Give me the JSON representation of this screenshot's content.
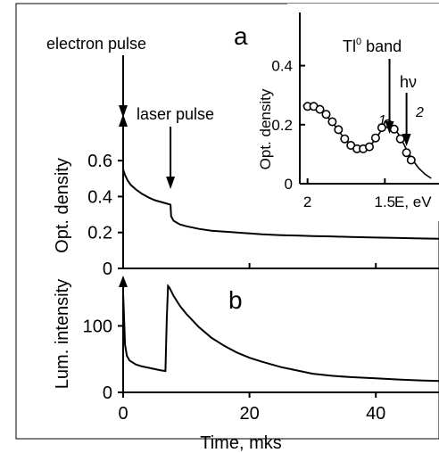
{
  "chart_data": [
    {
      "panel": "a",
      "type": "line",
      "xlabel": "",
      "ylabel": "Opt. density",
      "xlim": [
        0,
        50
      ],
      "ylim": [
        0,
        0.7
      ],
      "x_ticks": [
        {
          "value": 0,
          "label": "0"
        },
        {
          "value": 20,
          "label": "20"
        },
        {
          "value": 40,
          "label": "40"
        }
      ],
      "y_ticks": [
        {
          "value": 0,
          "label": "0"
        },
        {
          "value": 0.2,
          "label": "0.2"
        },
        {
          "value": 0.4,
          "label": "0.4"
        },
        {
          "value": 0.6,
          "label": "0.6"
        }
      ],
      "series": [
        {
          "x": [
            0,
            0.3,
            0.7,
            1.2,
            2,
            3,
            4,
            5,
            6,
            7,
            7.5,
            7.6,
            8,
            9,
            10,
            12,
            14,
            16,
            18,
            20,
            22,
            25,
            28,
            30,
            33,
            36,
            40,
            43,
            46,
            50
          ],
          "y": [
            0.55,
            0.52,
            0.49,
            0.465,
            0.44,
            0.415,
            0.395,
            0.38,
            0.37,
            0.36,
            0.355,
            0.29,
            0.265,
            0.245,
            0.235,
            0.22,
            0.21,
            0.205,
            0.2,
            0.195,
            0.19,
            0.185,
            0.182,
            0.18,
            0.178,
            0.175,
            0.172,
            0.17,
            0.168,
            0.165
          ]
        }
      ],
      "annotations": [
        {
          "text": "electron pulse",
          "x": 0
        },
        {
          "text": "laser pulse",
          "x": 7.5
        }
      ]
    },
    {
      "panel": "b",
      "type": "line",
      "xlabel": "Time, mks",
      "ylabel": "Lum. intensity",
      "xlim": [
        0,
        50
      ],
      "ylim": [
        0,
        165
      ],
      "x_ticks": [
        {
          "value": 0,
          "label": "0"
        },
        {
          "value": 20,
          "label": "20"
        },
        {
          "value": 40,
          "label": "40"
        }
      ],
      "y_ticks": [
        {
          "value": 0,
          "label": "0"
        },
        {
          "value": 100,
          "label": "100"
        }
      ],
      "series": [
        {
          "x": [
            0,
            0.15,
            0.3,
            0.6,
            1,
            2,
            3,
            4,
            5,
            6,
            6.7,
            6.9,
            7.1,
            7.3,
            8,
            9,
            10,
            12,
            14,
            16,
            18,
            20,
            22,
            25,
            28,
            30,
            33,
            36,
            40,
            44,
            47,
            50
          ],
          "y": [
            150,
            110,
            72,
            55,
            48,
            42,
            39,
            37,
            35,
            33,
            32,
            110,
            160,
            158,
            145,
            130,
            118,
            98,
            82,
            70,
            60,
            52,
            46,
            38,
            32,
            28,
            25,
            23,
            21,
            19,
            18,
            17
          ]
        }
      ]
    },
    {
      "panel": "inset",
      "type": "scatter",
      "xlabel": "E, eV",
      "ylabel": "Opt. density",
      "xlim": [
        2.05,
        1.15
      ],
      "ylim": [
        0,
        0.58
      ],
      "x_ticks": [
        {
          "value": 2,
          "label": "2"
        },
        {
          "value": 1.5,
          "label": "1.5"
        }
      ],
      "y_ticks": [
        {
          "value": 0,
          "label": "0"
        },
        {
          "value": 0.2,
          "label": "0.2"
        },
        {
          "value": 0.4,
          "label": "0.4"
        }
      ],
      "points": {
        "x": [
          2.0,
          1.96,
          1.92,
          1.88,
          1.84,
          1.8,
          1.76,
          1.72,
          1.68,
          1.64,
          1.6,
          1.56,
          1.52,
          1.48,
          1.44,
          1.4,
          1.36,
          1.33
        ],
        "y": [
          0.262,
          0.262,
          0.252,
          0.235,
          0.21,
          0.183,
          0.152,
          0.13,
          0.118,
          0.118,
          0.125,
          0.155,
          0.19,
          0.203,
          0.185,
          0.152,
          0.105,
          0.08
        ]
      },
      "fit": {
        "x": [
          2.03,
          2.0,
          1.96,
          1.92,
          1.88,
          1.84,
          1.8,
          1.76,
          1.72,
          1.68,
          1.64,
          1.6,
          1.56,
          1.52,
          1.49,
          1.47,
          1.44,
          1.4,
          1.36,
          1.32,
          1.28,
          1.24,
          1.2
        ],
        "y": [
          0.265,
          0.262,
          0.258,
          0.248,
          0.232,
          0.208,
          0.18,
          0.152,
          0.132,
          0.12,
          0.118,
          0.126,
          0.15,
          0.184,
          0.2,
          0.203,
          0.19,
          0.158,
          0.115,
          0.08,
          0.052,
          0.032,
          0.018
        ]
      },
      "annotations": [
        {
          "text": "Tl",
          "superscript": "0",
          "suffix": " band",
          "x": 1.47
        },
        {
          "text": "hν",
          "x": 1.36
        },
        {
          "text": "1",
          "x": 1.47
        },
        {
          "text": "2",
          "x": 1.36
        }
      ]
    }
  ],
  "labels": {
    "panel_a": "a",
    "panel_b": "b",
    "electron_pulse": "electron pulse",
    "laser_pulse": "laser pulse",
    "inset_band_main": "Tl",
    "inset_band_sup": "0",
    "inset_band_suffix": " band",
    "inset_hv": "hν",
    "inset_mark1": "1",
    "inset_mark2": "2"
  }
}
